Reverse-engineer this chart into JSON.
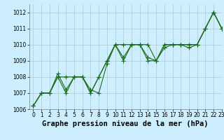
{
  "title": "Graphe pression niveau de la mer (hPa)",
  "bg_color": "#cceeff",
  "grid_color": "#aacccc",
  "line_color": "#1a6b1a",
  "xlim": [
    -0.5,
    23
  ],
  "ylim": [
    1006,
    1012.5
  ],
  "yticks": [
    1006,
    1007,
    1008,
    1009,
    1010,
    1011,
    1012
  ],
  "xticks": [
    0,
    1,
    2,
    3,
    4,
    5,
    6,
    7,
    8,
    9,
    10,
    11,
    12,
    13,
    14,
    15,
    16,
    17,
    18,
    19,
    20,
    21,
    22,
    23
  ],
  "xtick_labels": [
    "0",
    "1",
    "2",
    "3",
    "4",
    "5",
    "6",
    "7",
    "8",
    "9",
    "10",
    "11",
    "12",
    "13",
    "14",
    "15",
    "16",
    "17",
    "18",
    "19",
    "20",
    "21",
    "22",
    "23"
  ],
  "series": [
    [
      1006.2,
      1007.0,
      1007.0,
      1008.0,
      1008.0,
      1008.0,
      1008.0,
      1007.0,
      1008.0,
      1009.0,
      1010.0,
      1010.0,
      1010.0,
      1010.0,
      1010.0,
      1009.0,
      1010.0,
      1010.0,
      1010.0,
      1010.0,
      1010.0,
      1011.0,
      1012.0,
      1011.0
    ],
    [
      1006.2,
      1007.0,
      1007.0,
      1008.0,
      1007.0,
      1008.0,
      1008.0,
      1007.0,
      1008.0,
      1009.0,
      1010.0,
      1009.2,
      1010.0,
      1010.0,
      1009.2,
      1009.0,
      1010.0,
      1010.0,
      1010.0,
      1010.0,
      1010.0,
      1011.0,
      1012.0,
      1011.0
    ],
    [
      1006.2,
      1007.0,
      1007.0,
      1008.2,
      1007.2,
      1008.0,
      1008.0,
      1007.2,
      1007.0,
      1008.8,
      1010.0,
      1009.0,
      1010.0,
      1010.0,
      1009.0,
      1009.0,
      1009.8,
      1010.0,
      1010.0,
      1009.8,
      1010.0,
      1011.0,
      1012.0,
      1011.0
    ]
  ],
  "marker": "+",
  "markersize": 4,
  "linewidth": 0.8,
  "title_fontsize": 7.5,
  "tick_fontsize": 5.5
}
